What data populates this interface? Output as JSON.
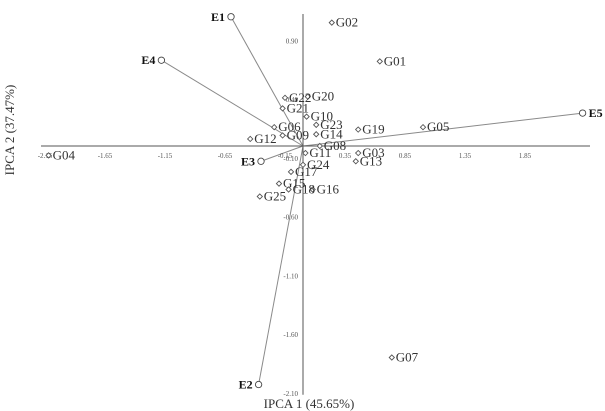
{
  "chart_data": {
    "type": "scatter",
    "title": "",
    "xlabel": "IPCA 1 (45.65%)",
    "ylabel": "IPCA 2 (37.47%)",
    "xlim": [
      -2.15,
      2.4
    ],
    "ylim": [
      -2.1,
      1.12
    ],
    "x_ticks": [
      {
        "value": -2.15,
        "label": "-2.15"
      },
      {
        "value": -1.65,
        "label": "-1.65"
      },
      {
        "value": -1.15,
        "label": "-1.15"
      },
      {
        "value": -0.65,
        "label": "-0.65"
      },
      {
        "value": -0.15,
        "label": "-0.15"
      },
      {
        "value": 0.35,
        "label": "0.35"
      },
      {
        "value": 0.85,
        "label": "0.85"
      },
      {
        "value": 1.35,
        "label": "1.35"
      },
      {
        "value": 1.85,
        "label": "1.85"
      }
    ],
    "y_ticks": [
      {
        "value": 0.9,
        "label": "0.90"
      },
      {
        "value": 0.4,
        "label": "0.40"
      },
      {
        "value": -0.1,
        "label": "-0.10"
      },
      {
        "value": -0.6,
        "label": "-0.60"
      },
      {
        "value": -1.1,
        "label": "-1.10"
      },
      {
        "value": -1.6,
        "label": "-1.60"
      },
      {
        "value": -2.1,
        "label": "-2.10"
      }
    ],
    "grid": false,
    "series": [
      {
        "role": "genotypes",
        "points": [
          {
            "label": "G01",
            "x": 0.64,
            "y": 0.72
          },
          {
            "label": "G02",
            "x": 0.24,
            "y": 1.05
          },
          {
            "label": "G03",
            "x": 0.46,
            "y": -0.06
          },
          {
            "label": "G04",
            "x": -2.12,
            "y": -0.08
          },
          {
            "label": "G05",
            "x": 1.0,
            "y": 0.16
          },
          {
            "label": "G06",
            "x": -0.24,
            "y": 0.16
          },
          {
            "label": "G07",
            "x": 0.74,
            "y": -1.8
          },
          {
            "label": "G08",
            "x": 0.14,
            "y": 0.0
          },
          {
            "label": "G09",
            "x": -0.17,
            "y": 0.09
          },
          {
            "label": "G10",
            "x": 0.03,
            "y": 0.25
          },
          {
            "label": "G11",
            "x": 0.02,
            "y": -0.06
          },
          {
            "label": "G12",
            "x": -0.44,
            "y": 0.06
          },
          {
            "label": "G13",
            "x": 0.44,
            "y": -0.13
          },
          {
            "label": "G14",
            "x": 0.11,
            "y": 0.1
          },
          {
            "label": "G15",
            "x": -0.2,
            "y": -0.32
          },
          {
            "label": "G16",
            "x": 0.08,
            "y": -0.37
          },
          {
            "label": "G17",
            "x": -0.1,
            "y": -0.22
          },
          {
            "label": "G18",
            "x": -0.12,
            "y": -0.37
          },
          {
            "label": "G19",
            "x": 0.46,
            "y": 0.14
          },
          {
            "label": "G20",
            "x": 0.04,
            "y": 0.42
          },
          {
            "label": "G21",
            "x": -0.17,
            "y": 0.32
          },
          {
            "label": "G22",
            "x": -0.15,
            "y": 0.41
          },
          {
            "label": "G23",
            "x": 0.11,
            "y": 0.18
          },
          {
            "label": "G24",
            "x": 0.0,
            "y": -0.16
          },
          {
            "label": "G25",
            "x": -0.36,
            "y": -0.43
          }
        ]
      },
      {
        "role": "environments",
        "points": [
          {
            "label": "E1",
            "x": -0.6,
            "y": 1.1
          },
          {
            "label": "E2",
            "x": -0.37,
            "y": -2.03
          },
          {
            "label": "E3",
            "x": -0.35,
            "y": -0.13
          },
          {
            "label": "E4",
            "x": -1.18,
            "y": 0.73
          },
          {
            "label": "E5",
            "x": 2.33,
            "y": 0.28
          }
        ]
      }
    ]
  }
}
